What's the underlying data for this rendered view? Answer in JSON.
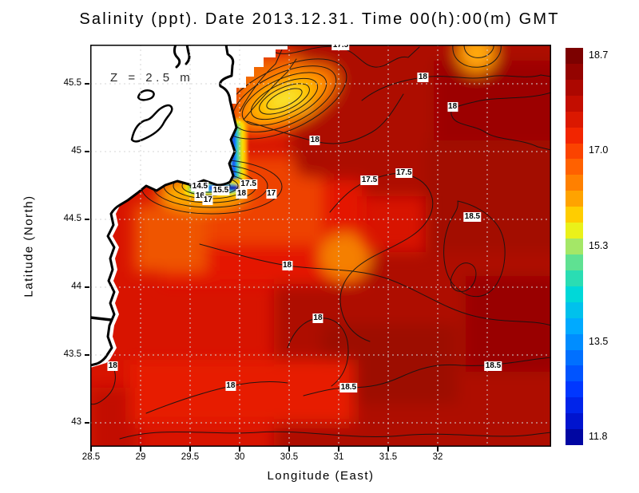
{
  "title": "Salinity (ppt). Date 2013.12.31. Time 00(h):00(m) GMT",
  "annotation": "Z = 2.5 m",
  "axes": {
    "xlabel": "Longitude (East)",
    "ylabel": "Latitude (North)",
    "x_tick_labels": [
      "28.5",
      "29",
      "29.5",
      "30",
      "30.5",
      "31",
      "31.5",
      "32"
    ],
    "x_tick_values": [
      28.5,
      29,
      29.5,
      30,
      30.5,
      31,
      31.5,
      32
    ],
    "y_tick_labels": [
      "45.5",
      "45",
      "44.5",
      "44",
      "43.5",
      "43"
    ],
    "y_tick_values": [
      45.5,
      45,
      44.5,
      44,
      43.5,
      43
    ]
  },
  "colorbar": {
    "labels": [
      "18.7",
      "17.0",
      "15.3",
      "13.5",
      "11.8"
    ],
    "min": 11.8,
    "max": 18.7,
    "segments": 25
  },
  "chart_data": {
    "type": "heatmap",
    "variable": "Salinity (ppt)",
    "date": "2013.12.31",
    "time": "00(h):00(m) GMT",
    "depth_annotation": "Z = 2.5 m",
    "title": "Salinity (ppt). Date 2013.12.31. Time 00(h):00(m) GMT",
    "xlabel": "Longitude (East)",
    "ylabel": "Latitude (North)",
    "xlim": [
      28.5,
      33.15
    ],
    "ylim": [
      42.82,
      45.79
    ],
    "grid": true,
    "colorbar_range": [
      11.8,
      18.7
    ],
    "colorbar_tick_values": [
      18.7,
      17.0,
      15.3,
      13.5,
      11.8
    ],
    "contour_levels": [
      14.5,
      15.5,
      16,
      17,
      17.5,
      18,
      18.5
    ],
    "contour_labels": [
      {
        "text": "17.5",
        "lon": 31.02,
        "lat": 45.78
      },
      {
        "text": "18",
        "lon": 31.85,
        "lat": 45.55
      },
      {
        "text": "18",
        "lon": 32.15,
        "lat": 45.33
      },
      {
        "text": "18",
        "lon": 30.76,
        "lat": 45.08
      },
      {
        "text": "17.5",
        "lon": 31.66,
        "lat": 44.84
      },
      {
        "text": "17.5",
        "lon": 31.31,
        "lat": 44.79
      },
      {
        "text": "14.5",
        "lon": 29.6,
        "lat": 44.74
      },
      {
        "text": "15.5",
        "lon": 29.81,
        "lat": 44.71
      },
      {
        "text": "17.5",
        "lon": 30.09,
        "lat": 44.76
      },
      {
        "text": "18",
        "lon": 30.02,
        "lat": 44.69
      },
      {
        "text": "17",
        "lon": 30.32,
        "lat": 44.69
      },
      {
        "text": "16",
        "lon": 29.6,
        "lat": 44.67
      },
      {
        "text": "17",
        "lon": 29.68,
        "lat": 44.64
      },
      {
        "text": "18.5",
        "lon": 32.35,
        "lat": 44.52
      },
      {
        "text": "18",
        "lon": 30.48,
        "lat": 44.16
      },
      {
        "text": "18",
        "lon": 30.79,
        "lat": 43.77
      },
      {
        "text": "18",
        "lon": 28.72,
        "lat": 43.42
      },
      {
        "text": "18.5",
        "lon": 32.56,
        "lat": 43.42
      },
      {
        "text": "18",
        "lon": 29.91,
        "lat": 43.27
      },
      {
        "text": "18.5",
        "lon": 31.1,
        "lat": 43.26
      }
    ],
    "field_summary": "Western Black Sea surface salinity at 2.5 m depth: open sea mostly 17.5-18.7 ppt (red to dark red); fresh Danube river plume along the NW coast near 29.7E, 44.7-45.2N with salinity dropping to 11-15 ppt (blue/cyan/green/yellow bands hugging the coast); land (Romania/Bulgaria coast) masked white in upper-left."
  }
}
